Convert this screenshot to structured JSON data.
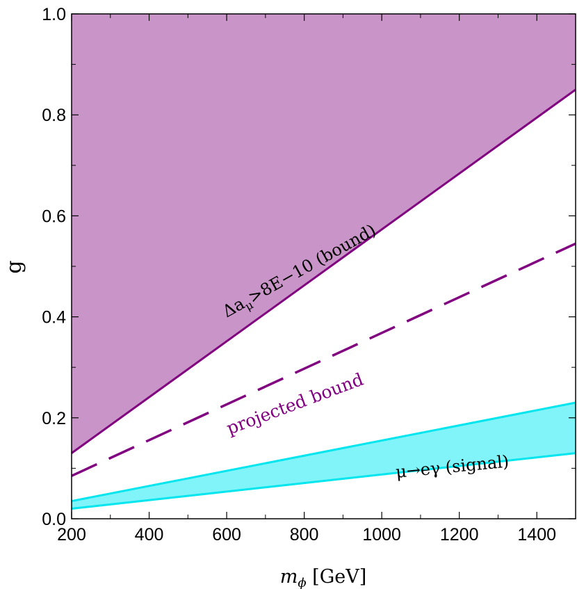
{
  "chart_data": {
    "type": "area",
    "xlabel": {
      "main": "m",
      "sub": "ϕ",
      "unit": " [GeV]"
    },
    "ylabel": "g",
    "xlim": [
      200,
      1500
    ],
    "ylim": [
      0.0,
      1.0
    ],
    "x_ticks": [
      {
        "value": 200,
        "label": "200"
      },
      {
        "value": 400,
        "label": "400"
      },
      {
        "value": 600,
        "label": "600"
      },
      {
        "value": 800,
        "label": "800"
      },
      {
        "value": 1000,
        "label": "1000"
      },
      {
        "value": 1200,
        "label": "1200"
      },
      {
        "value": 1400,
        "label": "1400"
      }
    ],
    "y_ticks": [
      {
        "value": 0.0,
        "label": "0.0"
      },
      {
        "value": 0.2,
        "label": "0.2"
      },
      {
        "value": 0.4,
        "label": "0.4"
      },
      {
        "value": 0.6,
        "label": "0.6"
      },
      {
        "value": 0.8,
        "label": "0.8"
      },
      {
        "value": 1.0,
        "label": "1.0"
      }
    ],
    "grid": false,
    "series": [
      {
        "name": "Δa_μ>8E−10 (bound)",
        "kind": "excluded-region-above",
        "color": "#800080",
        "fill": "#c994c7",
        "x": [
          200,
          1500
        ],
        "y": [
          0.13,
          0.85
        ]
      },
      {
        "name": "projected bound",
        "kind": "dashed-line",
        "color": "#800080",
        "x": [
          200,
          1500
        ],
        "y": [
          0.085,
          0.545
        ]
      },
      {
        "name": "μ→eγ (signal)",
        "kind": "band",
        "color": "#00e5ee",
        "fill": "#80f4f8",
        "x": [
          200,
          1500
        ],
        "y_lower": [
          0.02,
          0.13
        ],
        "y_upper": [
          0.035,
          0.23
        ]
      }
    ],
    "annotations": {
      "bound": {
        "delta": "Δa",
        "sub": "μ",
        "rest": ">8E−10 (bound)",
        "color": "#000000"
      },
      "projected": {
        "text": "projected bound",
        "color": "#800080"
      },
      "signal": {
        "text": "μ→eγ (signal)",
        "color": "#000000"
      }
    }
  }
}
